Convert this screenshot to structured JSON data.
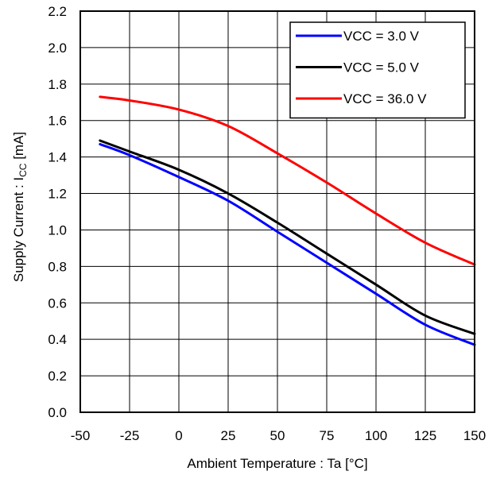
{
  "chart_data": {
    "type": "line",
    "xlabel": "Ambient Temperature : Ta [°C]",
    "ylabel_prefix": "Supply Current : I",
    "ylabel_sub": "CC",
    "ylabel_suffix": " [mA]",
    "xlim": [
      -50,
      150
    ],
    "ylim": [
      0,
      2.2
    ],
    "xticks": [
      "-50",
      "-25",
      "0",
      "25",
      "50",
      "75",
      "100",
      "125",
      "150"
    ],
    "yticks": [
      "0.0",
      "0.2",
      "0.4",
      "0.6",
      "0.8",
      "1.0",
      "1.2",
      "1.4",
      "1.6",
      "1.8",
      "2.0",
      "2.2"
    ],
    "grid": true,
    "legend_position": "top-right",
    "series": [
      {
        "name": "VCC = 3.0 V",
        "color": "#0000ff",
        "points": [
          [
            -40,
            1.47
          ],
          [
            -25,
            1.41
          ],
          [
            0,
            1.29
          ],
          [
            25,
            1.16
          ],
          [
            50,
            0.99
          ],
          [
            75,
            0.82
          ],
          [
            100,
            0.65
          ],
          [
            125,
            0.48
          ],
          [
            150,
            0.37
          ]
        ]
      },
      {
        "name": "VCC = 5.0 V",
        "color": "#000000",
        "points": [
          [
            -40,
            1.49
          ],
          [
            -25,
            1.43
          ],
          [
            0,
            1.33
          ],
          [
            25,
            1.2
          ],
          [
            50,
            1.04
          ],
          [
            75,
            0.87
          ],
          [
            100,
            0.7
          ],
          [
            125,
            0.53
          ],
          [
            150,
            0.43
          ]
        ]
      },
      {
        "name": "VCC = 36.0 V",
        "color": "#ff0000",
        "points": [
          [
            -40,
            1.73
          ],
          [
            -25,
            1.71
          ],
          [
            0,
            1.66
          ],
          [
            25,
            1.57
          ],
          [
            50,
            1.42
          ],
          [
            75,
            1.26
          ],
          [
            100,
            1.09
          ],
          [
            125,
            0.93
          ],
          [
            150,
            0.81
          ]
        ]
      }
    ]
  }
}
